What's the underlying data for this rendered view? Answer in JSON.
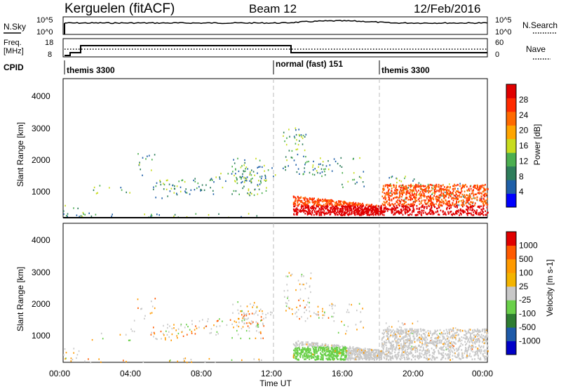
{
  "header": {
    "title": "Kerguelen (fitACF)",
    "beam": "Beam 12",
    "date": "12/Feb/2016"
  },
  "noise_panel": {
    "left_label": "N.Sky",
    "right_label": "N.Search",
    "left_ticks": [
      "10^5",
      "10^0"
    ],
    "right_ticks": [
      "10^5",
      "10^0"
    ]
  },
  "freq_panel": {
    "left_label_line1": "Freq.",
    "left_label_line2": "[MHz]",
    "right_label": "Nave",
    "left_ticks": [
      "18",
      "8"
    ],
    "right_ticks": [
      "60",
      "0"
    ]
  },
  "cpid_panel": {
    "label": "CPID",
    "segments": [
      {
        "name": "themis 3300",
        "start_hour": 0
      },
      {
        "name": "normal (fast) 151",
        "start_hour": 13.0
      },
      {
        "name": "themis 3300",
        "start_hour": 18.0
      }
    ]
  },
  "colors": {
    "power": [
      "#0000ff",
      "#1f5fa8",
      "#2e7d5b",
      "#4caf50",
      "#c8dc1e",
      "#ffa500",
      "#ff6a00",
      "#ff2a00",
      "#e00000"
    ],
    "velocity": [
      "#e00000",
      "#ff5a00",
      "#ff9a00",
      "#f4b400",
      "#c8c8c8",
      "#6ad04a",
      "#2e7d32",
      "#1e5aa8",
      "#0000c8"
    ]
  },
  "chart_data": [
    {
      "type": "heatmap",
      "quantity": "Power",
      "ylabel": "Slant Range [km]",
      "colorbar_label": "Power [dB]",
      "colorbar_ticks": [
        "28",
        "24",
        "20",
        "16",
        "12",
        "8",
        "4"
      ],
      "xlim_hours": [
        0,
        24
      ],
      "ylim_km": [
        200,
        4500
      ],
      "y_ticks": [
        "4000",
        "3000",
        "2000",
        "1000"
      ],
      "vertical_markers_hours": [
        12,
        18
      ],
      "x_ticks": [
        "00:00",
        "04:00",
        "08:00",
        "12:00",
        "16:00",
        "20:00",
        "00:00"
      ],
      "xlabel": "Time UT"
    },
    {
      "type": "heatmap",
      "quantity": "Velocity",
      "ylabel": "Slant Range [km]",
      "colorbar_label": "Velocity [m s-1]",
      "colorbar_ticks": [
        "1000",
        "500",
        "100",
        "25",
        "-25",
        "-100",
        "-500",
        "-1000"
      ],
      "xlim_hours": [
        0,
        24
      ],
      "ylim_km": [
        200,
        4500
      ],
      "y_ticks": [
        "4000",
        "3000",
        "2000",
        "1000"
      ],
      "vertical_markers_hours": [
        12,
        18
      ],
      "x_ticks": [
        "00:00",
        "04:00",
        "08:00",
        "12:00",
        "16:00",
        "20:00",
        "00:00"
      ],
      "xlabel": "Time UT"
    }
  ]
}
